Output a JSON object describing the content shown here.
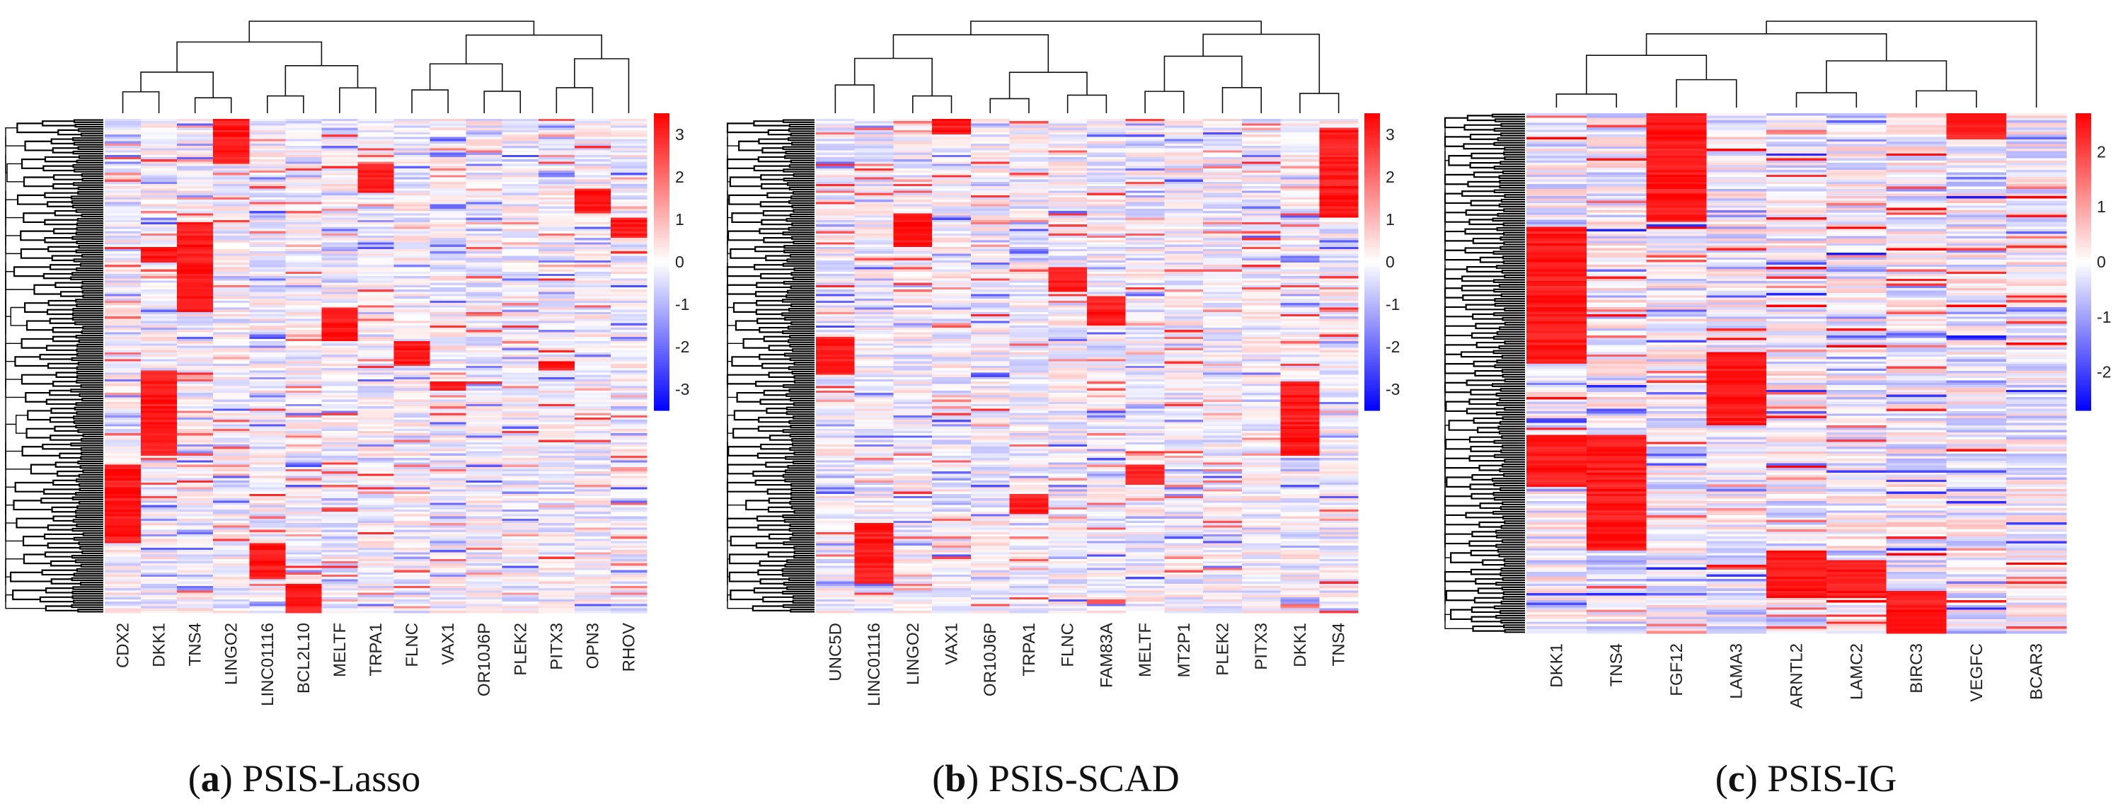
{
  "chart_data": [
    {
      "type": "heatmap",
      "panel_letter": "a",
      "title": "PSIS-Lasso",
      "columns": [
        "CDX2",
        "DKK1",
        "TNS4",
        "LINGO2",
        "LINC01116",
        "BCL2L10",
        "MELTF",
        "TRPA1",
        "FLNC",
        "VAX1",
        "OR10J6P",
        "PLEK2",
        "PITX3",
        "OPN3",
        "RHOV"
      ],
      "colorbar": {
        "min": -3.5,
        "max": 3.5,
        "ticks": [
          3,
          2,
          1,
          0,
          -1,
          -2,
          -3
        ],
        "low_color": "#0000ff",
        "mid_color": "#ffffff",
        "high_color": "#ff0000"
      },
      "row_dendrogram": true,
      "column_dendrogram": true,
      "high_blocks": [
        {
          "column": "CDX2",
          "rows": [
            0.7,
            0.86
          ]
        },
        {
          "column": "DKK1",
          "rows": [
            0.51,
            0.68
          ]
        },
        {
          "column": "DKK1",
          "rows": [
            0.26,
            0.29
          ]
        },
        {
          "column": "TNS4",
          "rows": [
            0.21,
            0.39
          ]
        },
        {
          "column": "LINGO2",
          "rows": [
            0.0,
            0.09
          ]
        },
        {
          "column": "LINC01116",
          "rows": [
            0.86,
            0.93
          ]
        },
        {
          "column": "BCL2L10",
          "rows": [
            0.94,
            1.0
          ]
        },
        {
          "column": "MELTF",
          "rows": [
            0.38,
            0.45
          ]
        },
        {
          "column": "TRPA1",
          "rows": [
            0.09,
            0.15
          ]
        },
        {
          "column": "FLNC",
          "rows": [
            0.45,
            0.5
          ]
        },
        {
          "column": "VAX1",
          "rows": [
            0.53,
            0.55
          ]
        },
        {
          "column": "PITX3",
          "rows": [
            0.49,
            0.51
          ]
        },
        {
          "column": "OPN3",
          "rows": [
            0.14,
            0.19
          ]
        },
        {
          "column": "RHOV",
          "rows": [
            0.2,
            0.24
          ]
        }
      ]
    },
    {
      "type": "heatmap",
      "panel_letter": "b",
      "title": "PSIS-SCAD",
      "columns": [
        "UNC5D",
        "LINC01116",
        "LINGO2",
        "VAX1",
        "OR10J6P",
        "TRPA1",
        "FLNC",
        "FAM83A",
        "MELTF",
        "MT2P1",
        "PLEK2",
        "PITX3",
        "DKK1",
        "TNS4"
      ],
      "colorbar": {
        "min": -3.5,
        "max": 3.5,
        "ticks": [
          3,
          2,
          1,
          0,
          -1,
          -2,
          -3
        ],
        "low_color": "#0000ff",
        "mid_color": "#ffffff",
        "high_color": "#ff0000"
      },
      "row_dendrogram": true,
      "column_dendrogram": true,
      "high_blocks": [
        {
          "column": "UNC5D",
          "rows": [
            0.44,
            0.52
          ]
        },
        {
          "column": "LINC01116",
          "rows": [
            0.82,
            0.94
          ]
        },
        {
          "column": "LINGO2",
          "rows": [
            0.19,
            0.26
          ]
        },
        {
          "column": "VAX1",
          "rows": [
            0.0,
            0.03
          ]
        },
        {
          "column": "TRPA1",
          "rows": [
            0.76,
            0.8
          ]
        },
        {
          "column": "FLNC",
          "rows": [
            0.3,
            0.35
          ]
        },
        {
          "column": "FAM83A",
          "rows": [
            0.36,
            0.42
          ]
        },
        {
          "column": "MELTF",
          "rows": [
            0.7,
            0.74
          ]
        },
        {
          "column": "DKK1",
          "rows": [
            0.53,
            0.68
          ]
        },
        {
          "column": "TNS4",
          "rows": [
            0.02,
            0.2
          ]
        }
      ]
    },
    {
      "type": "heatmap",
      "panel_letter": "c",
      "title": "PSIS-IG",
      "columns": [
        "DKK1",
        "TNS4",
        "FGF12",
        "LAMA3",
        "ARNTL2",
        "LAMC2",
        "BIRC3",
        "VEGFC",
        "BCAR3"
      ],
      "colorbar": {
        "min": -2.7,
        "max": 2.7,
        "ticks": [
          2,
          1,
          0,
          -1,
          -2
        ],
        "low_color": "#0000ff",
        "mid_color": "#ffffff",
        "high_color": "#ff0000"
      },
      "row_dendrogram": true,
      "column_dendrogram": true,
      "high_blocks": [
        {
          "column": "DKK1",
          "rows": [
            0.22,
            0.48
          ]
        },
        {
          "column": "DKK1",
          "rows": [
            0.62,
            0.72
          ]
        },
        {
          "column": "TNS4",
          "rows": [
            0.62,
            0.84
          ]
        },
        {
          "column": "FGF12",
          "rows": [
            0.0,
            0.21
          ]
        },
        {
          "column": "LAMA3",
          "rows": [
            0.46,
            0.6
          ]
        },
        {
          "column": "ARNTL2",
          "rows": [
            0.84,
            0.93
          ]
        },
        {
          "column": "LAMC2",
          "rows": [
            0.86,
            0.93
          ]
        },
        {
          "column": "BIRC3",
          "rows": [
            0.92,
            1.0
          ]
        },
        {
          "column": "VEGFC",
          "rows": [
            0.0,
            0.05
          ]
        }
      ]
    }
  ]
}
